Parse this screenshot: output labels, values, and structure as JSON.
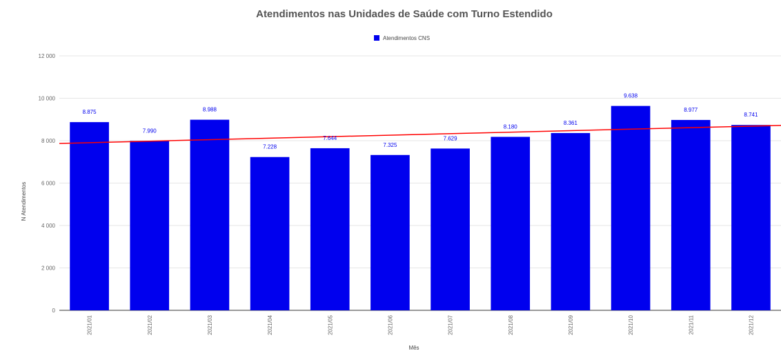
{
  "chart_data": {
    "type": "bar",
    "title": "Atendimentos nas Unidades de Saúde com Turno Estendido",
    "xlabel": "Mês",
    "ylabel": "N Atendimentos",
    "categories": [
      "2021/01",
      "2021/02",
      "2021/03",
      "2021/04",
      "2021/05",
      "2021/06",
      "2021/07",
      "2021/08",
      "2021/09",
      "2021/10",
      "2021/11",
      "2021/12"
    ],
    "series": [
      {
        "name": "Atendimentos CNS",
        "color": "#0000ee",
        "values": [
          8875,
          7990,
          8988,
          7228,
          7644,
          7325,
          7629,
          8180,
          8361,
          9638,
          8977,
          8741
        ],
        "labels": [
          "8.875",
          "7.990",
          "8.988",
          "7.228",
          "7.644",
          "7.325",
          "7.629",
          "8.180",
          "8.361",
          "9.638",
          "8.977",
          "8.741"
        ]
      }
    ],
    "trendline": {
      "color": "#ff0000",
      "start_value": 7870,
      "end_value": 8720
    },
    "ylim": [
      0,
      12000
    ],
    "yticks": [
      0,
      2000,
      4000,
      6000,
      8000,
      10000,
      12000
    ],
    "ytick_labels": [
      "0",
      "2 000",
      "4 000",
      "6 000",
      "8 000",
      "10 000",
      "12 000"
    ],
    "grid": true,
    "legend_position": "top-center"
  }
}
